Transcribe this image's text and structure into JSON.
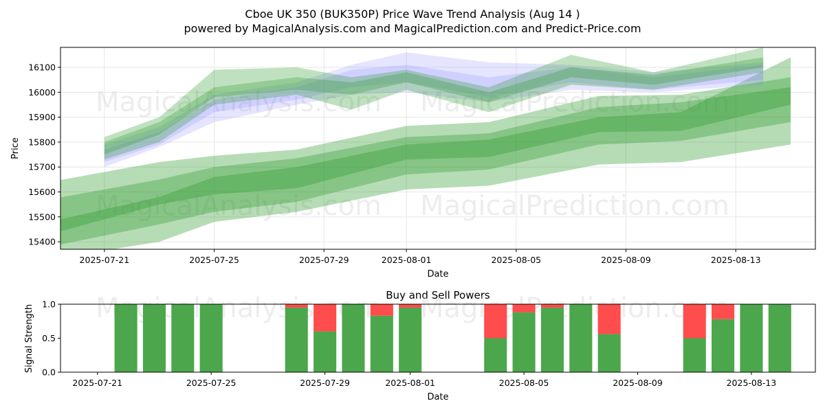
{
  "title": "Cboe UK 350 (BUK350P) Price Wave Trend Analysis (Aug 14 )",
  "subtitle": "powered by MagicalAnalysis.com and MagicalPrediction.com and Predict-Price.com",
  "watermarks": [
    "MagicalAnalysis.com",
    "MagicalPrediction.com"
  ],
  "colors": {
    "green": "#2e9a2e",
    "blue": "#7b7bff",
    "buy": "#4ca64c",
    "sell": "#ff4c4c"
  },
  "chart_data": [
    {
      "type": "area",
      "name": "price-wave",
      "title": "",
      "xlabel": "Date",
      "ylabel": "Price",
      "xlim": [
        "2025-07-20",
        "2025-08-15"
      ],
      "ylim": [
        15370,
        16180
      ],
      "grid": true,
      "x_ticks": [
        "2025-07-21",
        "2025-07-25",
        "2025-07-29",
        "2025-08-01",
        "2025-08-05",
        "2025-08-09",
        "2025-08-13"
      ],
      "y_ticks": [
        15400,
        15500,
        15600,
        15700,
        15800,
        15900,
        16000,
        16100
      ],
      "bands": [
        {
          "kind": "green",
          "alpha": 0.35,
          "x": [
            "2025-07-19",
            "2025-07-23",
            "2025-07-25",
            "2025-07-28",
            "2025-08-01",
            "2025-08-04",
            "2025-08-08",
            "2025-08-11",
            "2025-08-15"
          ],
          "upper": [
            15640,
            15720,
            15745,
            15770,
            15865,
            15880,
            15985,
            15990,
            16060
          ],
          "lower": [
            15430,
            15550,
            15590,
            15615,
            15730,
            15740,
            15840,
            15845,
            15950
          ]
        },
        {
          "kind": "green",
          "alpha": 0.35,
          "x": [
            "2025-07-19",
            "2025-07-23",
            "2025-07-25",
            "2025-07-28",
            "2025-08-01",
            "2025-08-04",
            "2025-08-08",
            "2025-08-11",
            "2025-08-15"
          ],
          "upper": [
            15570,
            15650,
            15700,
            15735,
            15820,
            15835,
            15940,
            15960,
            16020
          ],
          "lower": [
            15380,
            15470,
            15520,
            15560,
            15670,
            15690,
            15790,
            15805,
            15880
          ]
        },
        {
          "kind": "green",
          "alpha": 0.35,
          "x": [
            "2025-07-19",
            "2025-07-23",
            "2025-07-25",
            "2025-07-28",
            "2025-08-01",
            "2025-08-04",
            "2025-08-08",
            "2025-08-11",
            "2025-08-15"
          ],
          "upper": [
            15480,
            15580,
            15660,
            15700,
            15790,
            15810,
            15900,
            15920,
            16140
          ],
          "lower": [
            15330,
            15400,
            15480,
            15520,
            15610,
            15625,
            15710,
            15720,
            15790
          ]
        },
        {
          "kind": "blue",
          "alpha": 0.2,
          "x": [
            "2025-07-21",
            "2025-07-23",
            "2025-07-25",
            "2025-07-28",
            "2025-07-30",
            "2025-08-01",
            "2025-08-04",
            "2025-08-07",
            "2025-08-10",
            "2025-08-14"
          ],
          "upper": [
            15790,
            15860,
            15990,
            16040,
            16110,
            16160,
            16120,
            16110,
            16080,
            16120
          ],
          "lower": [
            15700,
            15780,
            15880,
            15950,
            15990,
            16000,
            15960,
            16010,
            16000,
            16030
          ]
        },
        {
          "kind": "blue",
          "alpha": 0.2,
          "x": [
            "2025-07-21",
            "2025-07-23",
            "2025-07-25",
            "2025-07-28",
            "2025-07-30",
            "2025-08-01",
            "2025-08-04",
            "2025-08-07",
            "2025-08-10",
            "2025-08-14"
          ],
          "upper": [
            15770,
            15840,
            15970,
            16020,
            16090,
            16110,
            16060,
            16100,
            16060,
            16110
          ],
          "lower": [
            15720,
            15790,
            15920,
            15970,
            16020,
            16040,
            15980,
            16040,
            16010,
            16050
          ]
        },
        {
          "kind": "green",
          "alpha": 0.3,
          "x": [
            "2025-07-21",
            "2025-07-23",
            "2025-07-25",
            "2025-07-28",
            "2025-07-30",
            "2025-08-01",
            "2025-08-04",
            "2025-08-07",
            "2025-08-10",
            "2025-08-14"
          ],
          "upper": [
            15820,
            15900,
            16090,
            16100,
            16060,
            16090,
            16020,
            16150,
            16080,
            16180
          ],
          "lower": [
            15730,
            15800,
            15950,
            15990,
            15930,
            16010,
            15920,
            16030,
            16010,
            16080
          ]
        },
        {
          "kind": "green",
          "alpha": 0.3,
          "x": [
            "2025-07-21",
            "2025-07-23",
            "2025-07-25",
            "2025-07-28",
            "2025-07-30",
            "2025-08-01",
            "2025-08-04",
            "2025-08-07",
            "2025-08-10",
            "2025-08-14"
          ],
          "upper": [
            15800,
            15880,
            16020,
            16060,
            16040,
            16080,
            16000,
            16100,
            16070,
            16140
          ],
          "lower": [
            15750,
            15830,
            15980,
            16010,
            15990,
            16040,
            15960,
            16060,
            16030,
            16100
          ]
        }
      ]
    },
    {
      "type": "bar",
      "name": "buy-sell-powers",
      "title": "Buy and Sell Powers",
      "xlabel": "Date",
      "ylabel": "Signal Strength",
      "ylim": [
        0,
        1
      ],
      "y_ticks": [
        "0.0",
        "0.5",
        "1.0"
      ],
      "x_ticks": [
        "2025-07-21",
        "2025-07-25",
        "2025-07-29",
        "2025-08-01",
        "2025-08-05",
        "2025-08-09",
        "2025-08-13"
      ],
      "series": [
        {
          "name": "buy",
          "x": [
            "2025-07-22",
            "2025-07-23",
            "2025-07-24",
            "2025-07-25",
            "2025-07-28",
            "2025-07-29",
            "2025-07-30",
            "2025-07-31",
            "2025-08-01",
            "2025-08-04",
            "2025-08-05",
            "2025-08-06",
            "2025-08-07",
            "2025-08-08",
            "2025-08-11",
            "2025-08-12",
            "2025-08-13",
            "2025-08-14"
          ],
          "values": [
            1.0,
            1.0,
            1.0,
            1.0,
            0.95,
            0.6,
            1.0,
            0.83,
            0.95,
            0.5,
            0.88,
            0.95,
            1.0,
            0.56,
            0.5,
            0.78,
            1.0,
            1.0
          ]
        },
        {
          "name": "sell",
          "x": [
            "2025-07-22",
            "2025-07-23",
            "2025-07-24",
            "2025-07-25",
            "2025-07-28",
            "2025-07-29",
            "2025-07-30",
            "2025-07-31",
            "2025-08-01",
            "2025-08-04",
            "2025-08-05",
            "2025-08-06",
            "2025-08-07",
            "2025-08-08",
            "2025-08-11",
            "2025-08-12",
            "2025-08-13",
            "2025-08-14"
          ],
          "values": [
            0.0,
            0.0,
            0.0,
            0.0,
            0.05,
            0.4,
            0.0,
            0.17,
            0.05,
            0.5,
            0.12,
            0.05,
            0.0,
            0.44,
            0.5,
            0.22,
            0.0,
            0.0
          ]
        }
      ]
    }
  ]
}
